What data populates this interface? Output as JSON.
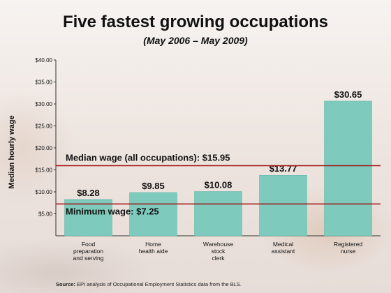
{
  "colors": {
    "bar": "#7ecbbd",
    "bar_stroke": "#5fb4a6",
    "reference_line": "#a01010",
    "text": "#111111"
  },
  "source": {
    "label": "Source:",
    "text": "EPI analysis of Occupational Employment Statistics data from the BLS."
  },
  "chart_data": {
    "type": "bar",
    "title": "Five fastest growing occupations",
    "subtitle": "(May 2006 – May 2009)",
    "xlabel": "",
    "ylabel": "Median hourly wage",
    "ylim": [
      0,
      40
    ],
    "yticks": [
      "$5.00",
      "$10.00",
      "$15.00",
      "$20.00",
      "$25.00",
      "$30.00",
      "$35.00",
      "$40.00"
    ],
    "ytick_values": [
      5,
      10,
      15,
      20,
      25,
      30,
      35,
      40
    ],
    "categories": [
      [
        "Food",
        "preparation",
        "and serving"
      ],
      [
        "Home",
        "health aide"
      ],
      [
        "Warehouse",
        "stock",
        "clerk"
      ],
      [
        "Medical",
        "assistant"
      ],
      [
        "Registered",
        "nurse"
      ]
    ],
    "values": [
      8.28,
      9.85,
      10.08,
      13.77,
      30.65
    ],
    "value_labels": [
      "$8.28",
      "$9.85",
      "$10.08",
      "$13.77",
      "$30.65"
    ],
    "reference_lines": [
      {
        "label": "Median wage (all occupations): $15.95",
        "value": 15.95
      },
      {
        "label": "Minimum wage: $7.25",
        "value": 7.25
      }
    ],
    "grid": false,
    "legend": "none"
  }
}
